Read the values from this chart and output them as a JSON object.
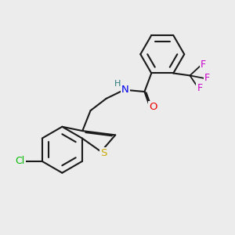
{
  "background_color": "#ececec",
  "bond_color": "#1a1a1a",
  "atom_colors": {
    "S": "#ccaa00",
    "N": "#0000ee",
    "O": "#ee0000",
    "Cl": "#00bb00",
    "F": "#cc00cc",
    "H": "#2a7a7a",
    "C": "#1a1a1a"
  },
  "figsize": [
    3.0,
    3.0
  ],
  "dpi": 100
}
